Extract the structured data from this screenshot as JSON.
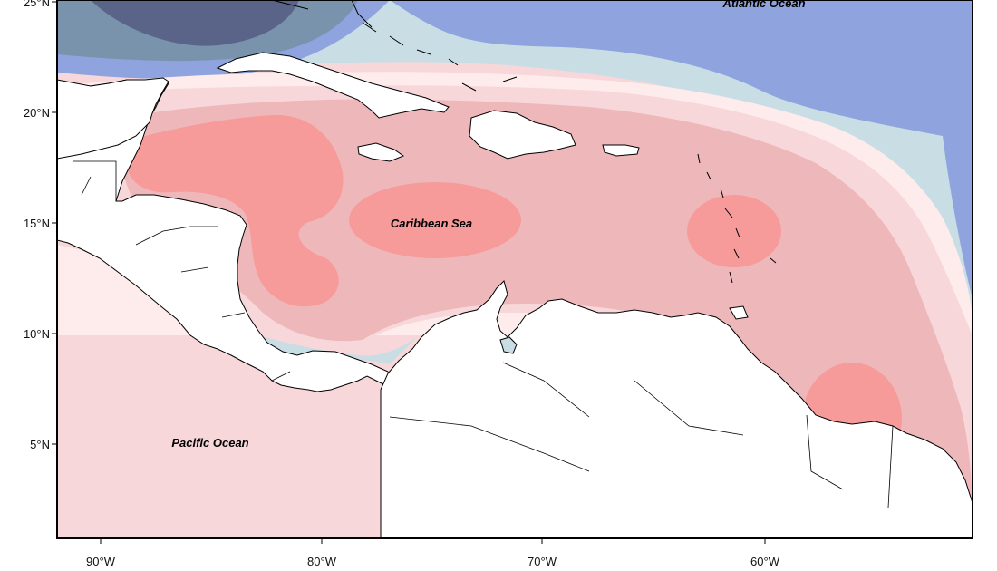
{
  "map": {
    "labels": {
      "atlantic": "Atlantic Ocean",
      "caribbean": "Caribbean Sea",
      "pacific": "Pacific Ocean"
    },
    "y_ticks": [
      "25°N",
      "20°N",
      "15°N",
      "10°N",
      "5°N"
    ],
    "x_ticks": [
      "90°W",
      "80°W",
      "70°W",
      "60°W"
    ],
    "extent": {
      "lon": [
        -92,
        -51
      ],
      "lat": [
        1,
        25
      ]
    },
    "colors": {
      "navy": "#5a6388",
      "steel": "#7a93ad",
      "blue": "#8fa3de",
      "pale_blue": "#c9dde5",
      "blush": "#fdeceb",
      "light_pink": "#f8d7da",
      "mid_pink": "#eeb8bb",
      "salmon": "#f79a9a",
      "land": "#ffffff",
      "outline": "#000000"
    }
  }
}
